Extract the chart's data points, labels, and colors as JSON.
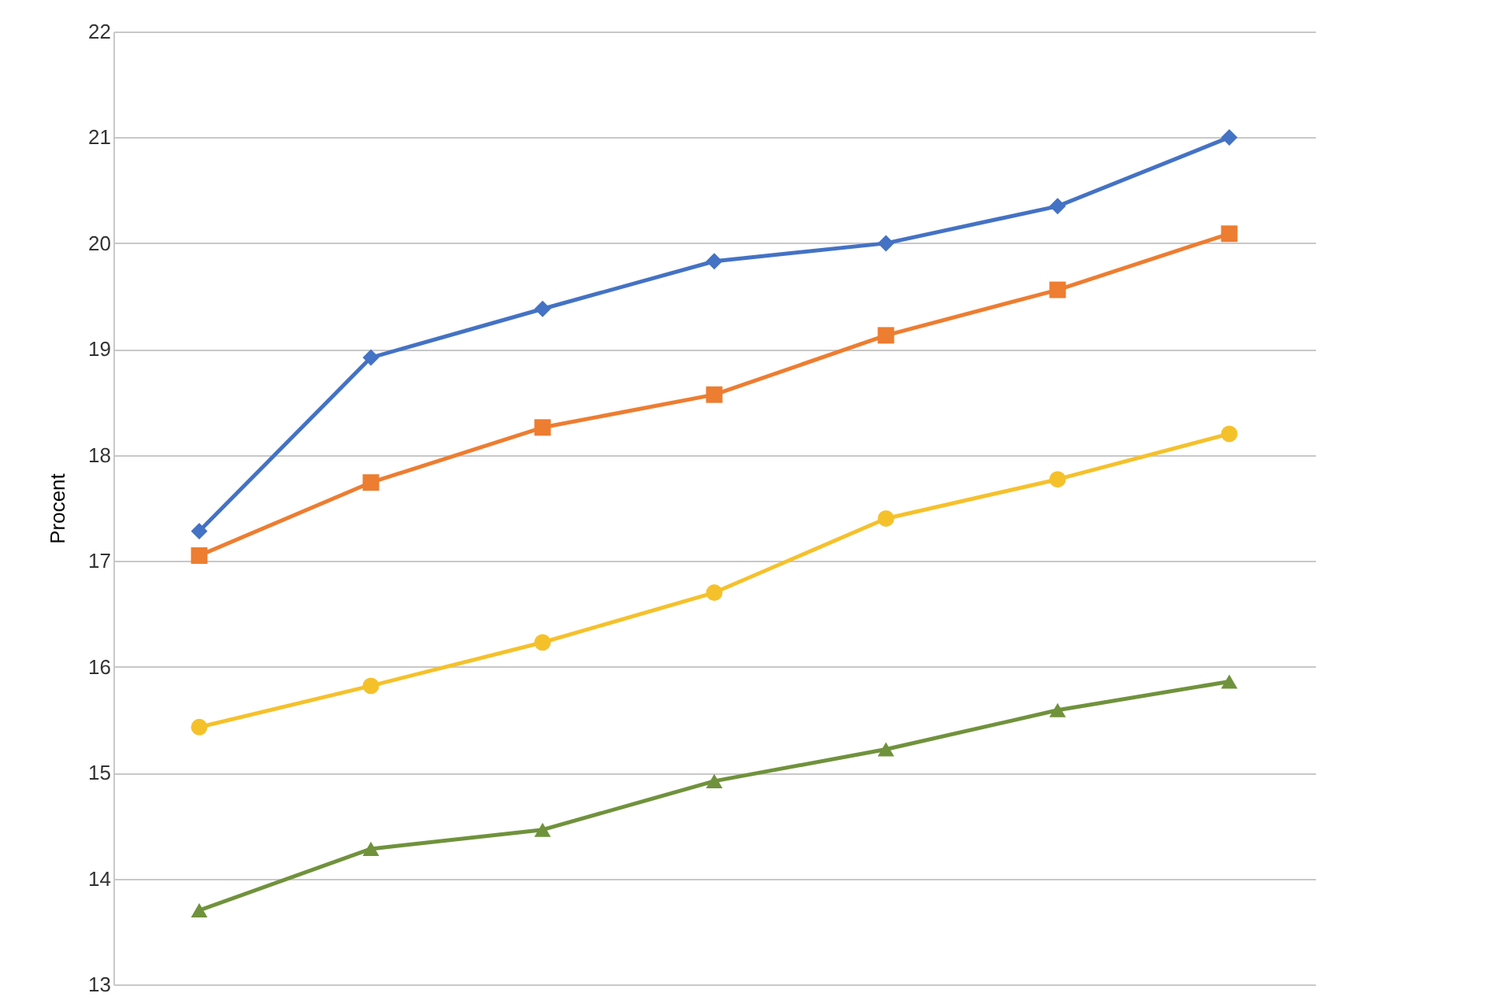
{
  "chart_data": {
    "type": "line",
    "ylabel": "Procent",
    "categories": [
      null,
      null,
      null,
      null,
      null,
      null,
      null
    ],
    "series": [
      {
        "color": "#4472c4",
        "marker": "diamond",
        "values": [
          17.28,
          18.92,
          19.38,
          19.83,
          20.0,
          20.35,
          21.0
        ]
      },
      {
        "color": "#ed7d31",
        "marker": "square",
        "values": [
          17.05,
          17.74,
          18.26,
          18.57,
          19.13,
          19.56,
          20.09
        ]
      },
      {
        "color": "#f5c12b",
        "marker": "circle",
        "values": [
          15.43,
          15.82,
          16.23,
          16.7,
          17.4,
          17.77,
          18.2
        ]
      },
      {
        "color": "#70923c",
        "marker": "triangle",
        "values": [
          13.7,
          14.28,
          14.46,
          14.92,
          15.22,
          15.59,
          15.86
        ]
      }
    ],
    "ylim": [
      13,
      22
    ],
    "yticks": [
      13,
      14,
      15,
      16,
      17,
      18,
      19,
      20,
      21,
      22
    ],
    "grid": "y",
    "tick_labels": "y",
    "line_style": "solid"
  }
}
